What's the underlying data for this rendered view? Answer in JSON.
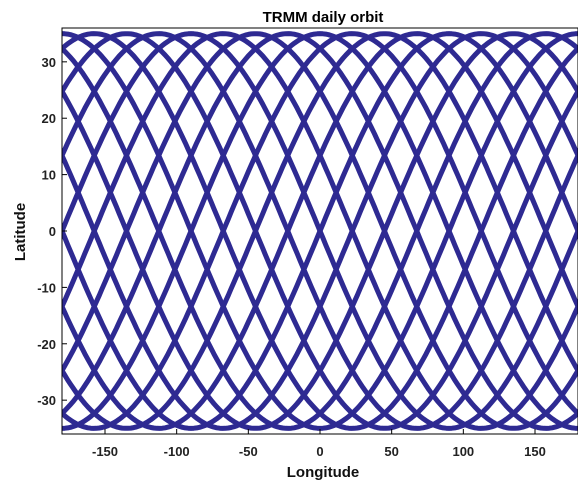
{
  "chart_data": {
    "type": "line",
    "title": "TRMM daily orbit",
    "xlabel": "Longitude",
    "ylabel": "Latitude",
    "xlim": [
      -180,
      180
    ],
    "ylim": [
      -36,
      36
    ],
    "x_ticks": [
      -150,
      -100,
      -50,
      0,
      50,
      100,
      150
    ],
    "x_tick_labels": [
      "-150",
      "-100",
      "-50",
      "0",
      "50",
      "100",
      "150"
    ],
    "y_ticks": [
      30,
      20,
      10,
      0,
      -10,
      -20,
      -30
    ],
    "y_tick_labels": [
      "30",
      "20",
      "10",
      "0",
      "-10",
      "-20",
      "-30"
    ],
    "grid": false,
    "legend": "none",
    "series": [
      {
        "inclination_deg": 35,
        "orbits_per_day": 16,
        "first_ascending_node_longitude": -180,
        "node_spacing_deg": 22.5
      }
    ]
  },
  "colors": {
    "orbit_line": "#2e2a92",
    "orbit_highlight": "#3a7fd5",
    "axes": "#000000",
    "background": "#ffffff"
  }
}
